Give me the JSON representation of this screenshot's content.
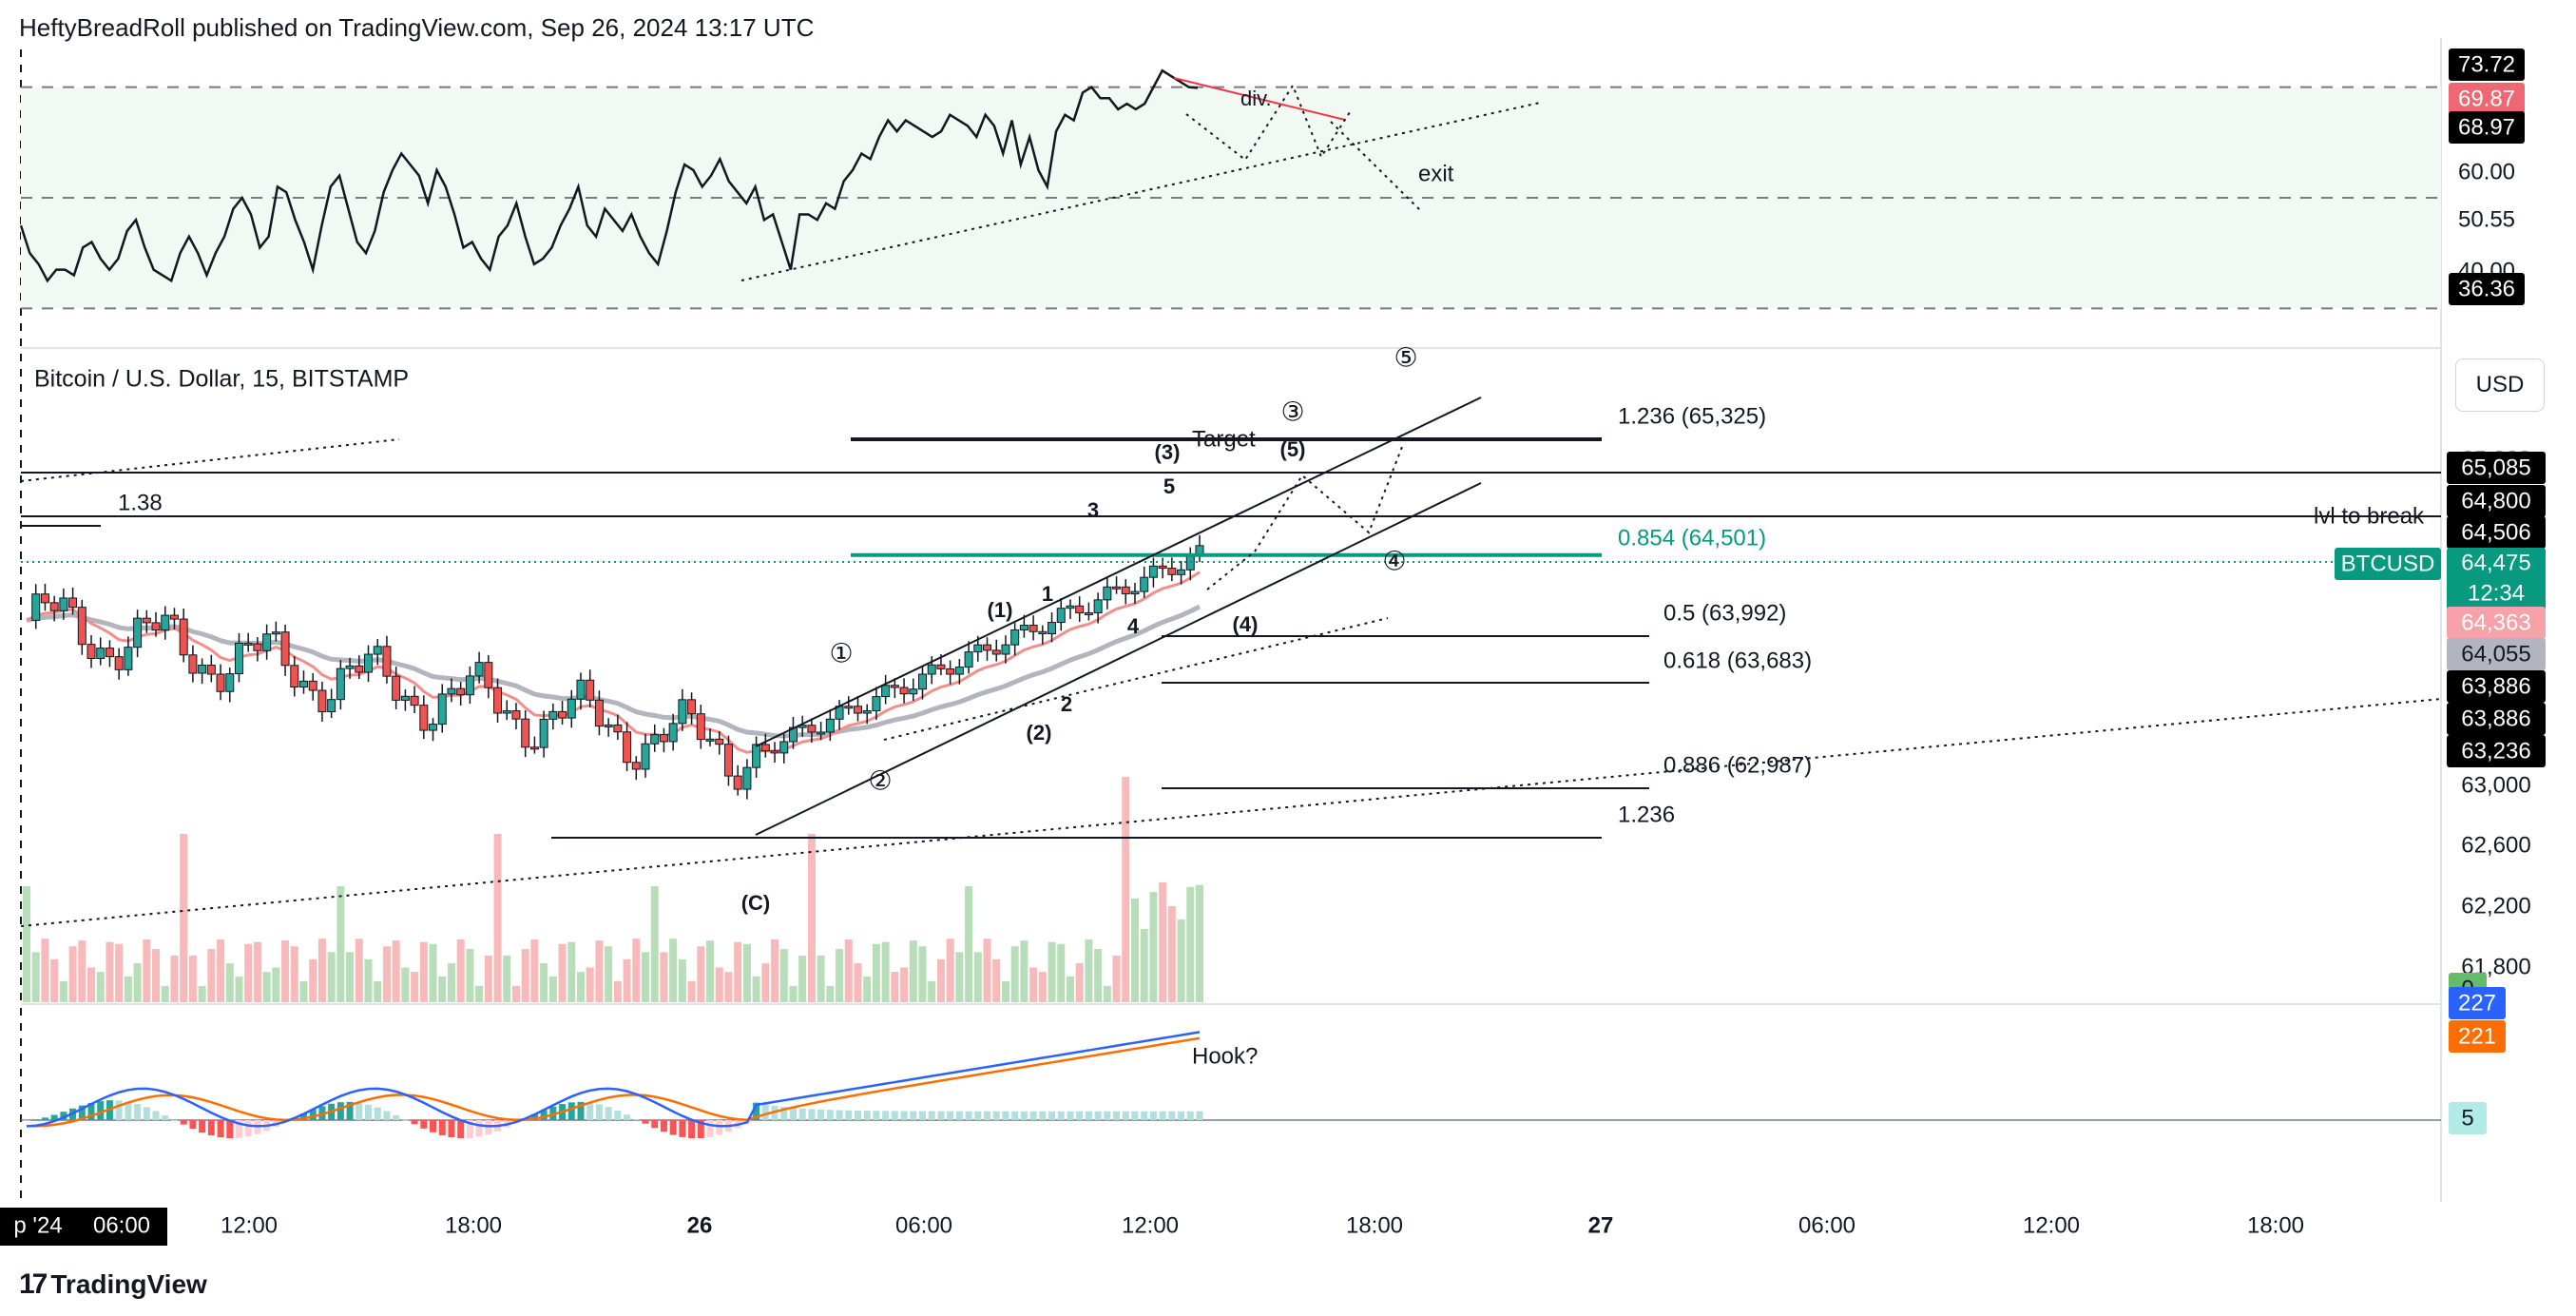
{
  "header": {
    "publisher_line": "HeftyBreadRoll published on TradingView.com, Sep 26, 2024 13:17 UTC"
  },
  "brand": {
    "logo_mark": "17",
    "name": "TradingView"
  },
  "currency_button": "USD",
  "colors": {
    "up_candle": "#26a69a",
    "down_candle": "#ef5350",
    "ema_fast": "#f48e8b",
    "ema_slow": "#b2b5be",
    "fib_highlight": "#089981",
    "rsi_line": "#131722",
    "rsi_band": "#f2f9f2",
    "macd_line": "#2962ff",
    "signal_line": "#ff6d00",
    "vol_up": "#b7deb8",
    "vol_down": "#f7b9b9"
  },
  "chart_data": [
    {
      "type": "line",
      "panel": "RSI",
      "y_axis_labels": [
        "73.72",
        "69.87",
        "68.97",
        "60.00",
        "50.55",
        "40.00",
        "36.36"
      ],
      "series": [
        {
          "values": [
            45,
            40,
            38,
            35,
            37,
            37,
            36,
            41,
            42,
            39,
            37,
            39,
            44,
            46,
            41,
            37,
            36,
            35,
            40,
            43,
            40,
            36,
            40,
            43,
            48,
            50,
            47,
            41,
            43,
            52,
            51,
            46,
            42,
            37,
            45,
            52,
            54,
            48,
            42,
            40,
            44,
            51,
            55,
            58,
            56,
            54,
            49,
            55,
            52,
            47,
            41,
            42,
            39,
            37,
            43,
            45,
            49,
            43,
            38,
            39,
            41,
            45,
            48,
            52,
            45,
            43,
            48,
            46,
            44,
            47,
            43,
            40,
            38,
            44,
            51,
            56,
            55,
            52,
            54,
            57,
            53,
            51,
            49,
            52,
            46,
            47,
            42,
            37,
            47,
            47,
            46,
            49,
            48,
            53,
            55,
            58,
            57,
            61,
            64,
            62,
            64,
            63,
            62,
            61,
            62,
            65,
            64,
            63,
            61,
            65,
            63,
            58,
            64,
            56,
            61,
            55,
            52,
            62,
            65,
            64,
            69,
            70,
            68,
            68,
            66,
            67,
            66,
            67,
            70,
            73,
            72,
            71,
            70,
            69.87
          ]
        }
      ],
      "annotations": [
        "div.",
        "exit"
      ]
    },
    {
      "type": "candlestick",
      "title": "Bitcoin / U.S. Dollar, 15, BITSTAMP",
      "symbol": "BTCUSD",
      "y_axis_labels": [
        "65,085",
        "64,800",
        "64,506",
        "64,475",
        "12:34",
        "64,363",
        "64,055",
        "63,886",
        "63,886",
        "63,236",
        "63,000",
        "62,600",
        "62,200",
        "61,800"
      ],
      "x_axis_labels": [
        "p '24",
        "06:00",
        "12:00",
        "18:00",
        "26",
        "06:00",
        "12:00",
        "18:00",
        "27",
        "06:00",
        "12:00",
        "18:00"
      ],
      "fib_levels": [
        {
          "label": "1.236 (65,325)",
          "value": 65325
        },
        {
          "label": "0.854 (64,501)",
          "value": 64501
        },
        {
          "label": "0.5 (63,992)",
          "value": 63992
        },
        {
          "label": "0.618 (63,683)",
          "value": 63683
        },
        {
          "label": "0.886 (62,987)",
          "value": 62987
        },
        {
          "label": "1.236",
          "value": 62700
        },
        {
          "label": "1.38",
          "value": 64700
        }
      ],
      "annotations": [
        "Target",
        "lvl to break",
        "(C)",
        "(1)",
        "(2)",
        "(3)",
        "(4)",
        "(5)",
        "1",
        "2",
        "3",
        "4",
        "5",
        "①",
        "②",
        "③",
        "④",
        "⑤"
      ],
      "last_price": 64475
    },
    {
      "type": "bar",
      "panel": "Volume"
    },
    {
      "type": "line",
      "panel": "MACD",
      "y_axis_labels": [
        "0",
        "227",
        "221",
        "5"
      ],
      "annotations": [
        "Hook?"
      ]
    }
  ]
}
